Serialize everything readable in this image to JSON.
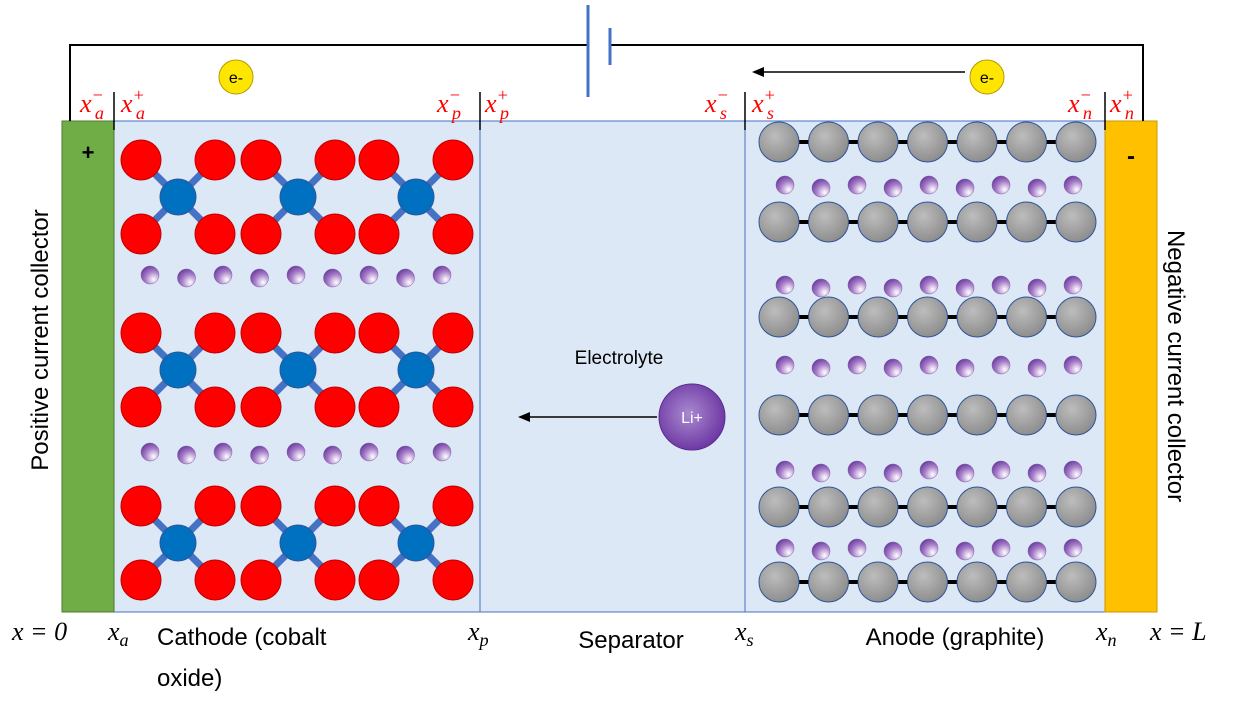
{
  "electrons": [
    "e-",
    "e-"
  ],
  "interface_labels": [
    {
      "base": "x",
      "sub": "a",
      "sup": "−"
    },
    {
      "base": "x",
      "sub": "a",
      "sup": "+"
    },
    {
      "base": "x",
      "sub": "p",
      "sup": "−"
    },
    {
      "base": "x",
      "sub": "p",
      "sup": "+"
    },
    {
      "base": "x",
      "sub": "s",
      "sup": "−"
    },
    {
      "base": "x",
      "sub": "s",
      "sup": "+"
    },
    {
      "base": "x",
      "sub": "n",
      "sup": "−"
    },
    {
      "base": "x",
      "sub": "n",
      "sup": "+"
    }
  ],
  "collectors": {
    "positive": {
      "sign": "+",
      "label": "Positive current collector"
    },
    "negative": {
      "sign": "-",
      "label": "Negative current collector"
    }
  },
  "electrolyte": "Electrolyte",
  "ion": "Li+",
  "positions": [
    {
      "base": "x = 0"
    },
    {
      "base": "x",
      "sub": "a"
    },
    {
      "base": "x",
      "sub": "p"
    },
    {
      "base": "x",
      "sub": "s"
    },
    {
      "base": "x",
      "sub": "n"
    },
    {
      "base": "x = L"
    }
  ],
  "regions": {
    "cathode": [
      "Cathode (cobalt",
      "oxide)"
    ],
    "separator": "Separator",
    "anode": "Anode (graphite)"
  }
}
